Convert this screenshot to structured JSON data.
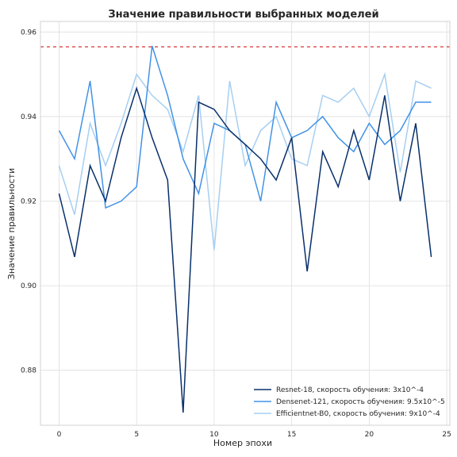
{
  "chart_data": {
    "type": "line",
    "title": "Значение правильности выбранных моделей",
    "xlabel": "Номер эпохи",
    "ylabel": "Значение правильности",
    "xlim": [
      -1.2,
      25.2
    ],
    "ylim": [
      0.867,
      0.9625
    ],
    "xticks": [
      0,
      5,
      10,
      15,
      20,
      25
    ],
    "yticks": [
      0.88,
      0.9,
      0.92,
      0.94,
      0.96
    ],
    "ytick_labels": [
      "0.88",
      "0.90",
      "0.92",
      "0.94",
      "0.96"
    ],
    "grid": true,
    "legend_position": "bottom-right",
    "reference_line": {
      "y": 0.9565,
      "color": "#cc0000",
      "style": "dashed"
    },
    "x": [
      0,
      1,
      2,
      3,
      4,
      5,
      6,
      7,
      8,
      9,
      10,
      11,
      12,
      13,
      14,
      15,
      16,
      17,
      18,
      19,
      20,
      21,
      22,
      23,
      24
    ],
    "series": [
      {
        "name": "Resnet-18, скорость обучения: 3x10^-4",
        "color": "#08306b",
        "values": [
          0.9218,
          0.9068,
          0.9284,
          0.92,
          0.935,
          0.9467,
          0.935,
          0.925,
          0.87,
          0.9434,
          0.9417,
          0.9367,
          0.9334,
          0.93,
          0.925,
          0.935,
          0.9034,
          0.9317,
          0.9234,
          0.9367,
          0.925,
          0.945,
          0.92,
          0.9384,
          0.9068
        ]
      },
      {
        "name": "Densenet-121, скорость обучения: 9.5x10^-5",
        "color": "#4292e6",
        "values": [
          0.9367,
          0.93,
          0.9484,
          0.9184,
          0.92,
          0.9234,
          0.9567,
          0.945,
          0.93,
          0.9218,
          0.9384,
          0.9367,
          0.9334,
          0.92,
          0.9434,
          0.935,
          0.9367,
          0.94,
          0.935,
          0.9317,
          0.9384,
          0.9334,
          0.9367,
          0.9434,
          0.9434
        ]
      },
      {
        "name": "Efficientnet-B0, скорость обучения: 9x10^-4",
        "color": "#a6cff2",
        "values": [
          0.9284,
          0.9168,
          0.9384,
          0.9284,
          0.9384,
          0.95,
          0.945,
          0.9417,
          0.9317,
          0.945,
          0.9084,
          0.9484,
          0.9284,
          0.9367,
          0.94,
          0.93,
          0.9284,
          0.945,
          0.9434,
          0.9467,
          0.94,
          0.95,
          0.9268,
          0.9484,
          0.9467
        ]
      }
    ]
  }
}
